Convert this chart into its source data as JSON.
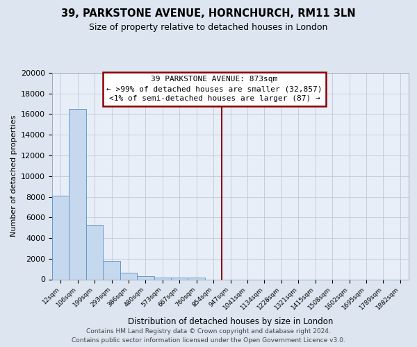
{
  "title": "39, PARKSTONE AVENUE, HORNCHURCH, RM11 3LN",
  "subtitle": "Size of property relative to detached houses in London",
  "xlabel": "Distribution of detached houses by size in London",
  "ylabel": "Number of detached properties",
  "bar_labels": [
    "12sqm",
    "106sqm",
    "199sqm",
    "293sqm",
    "386sqm",
    "480sqm",
    "573sqm",
    "667sqm",
    "760sqm",
    "854sqm",
    "947sqm",
    "1041sqm",
    "1134sqm",
    "1228sqm",
    "1321sqm",
    "1415sqm",
    "1508sqm",
    "1602sqm",
    "1695sqm",
    "1789sqm",
    "1882sqm"
  ],
  "bar_heights": [
    8100,
    16500,
    5300,
    1800,
    650,
    280,
    190,
    170,
    150,
    0,
    0,
    0,
    0,
    0,
    0,
    0,
    0,
    0,
    0,
    0,
    0
  ],
  "bar_color": "#c5d8ee",
  "bar_edge_color": "#6699cc",
  "property_line_color": "#8b0000",
  "ylim": [
    0,
    20000
  ],
  "yticks": [
    0,
    2000,
    4000,
    6000,
    8000,
    10000,
    12000,
    14000,
    16000,
    18000,
    20000
  ],
  "annotation_title": "39 PARKSTONE AVENUE: 873sqm",
  "annotation_line1": "← >99% of detached houses are smaller (32,857)",
  "annotation_line2": "<1% of semi-detached houses are larger (87) →",
  "annotation_box_color": "#ffffff",
  "annotation_box_edge": "#8b0000",
  "footer_line1": "Contains HM Land Registry data © Crown copyright and database right 2024.",
  "footer_line2": "Contains public sector information licensed under the Open Government Licence v3.0.",
  "bg_color": "#dde5f0",
  "plot_bg_color": "#e8eef8",
  "grid_color": "#c0c8d8"
}
